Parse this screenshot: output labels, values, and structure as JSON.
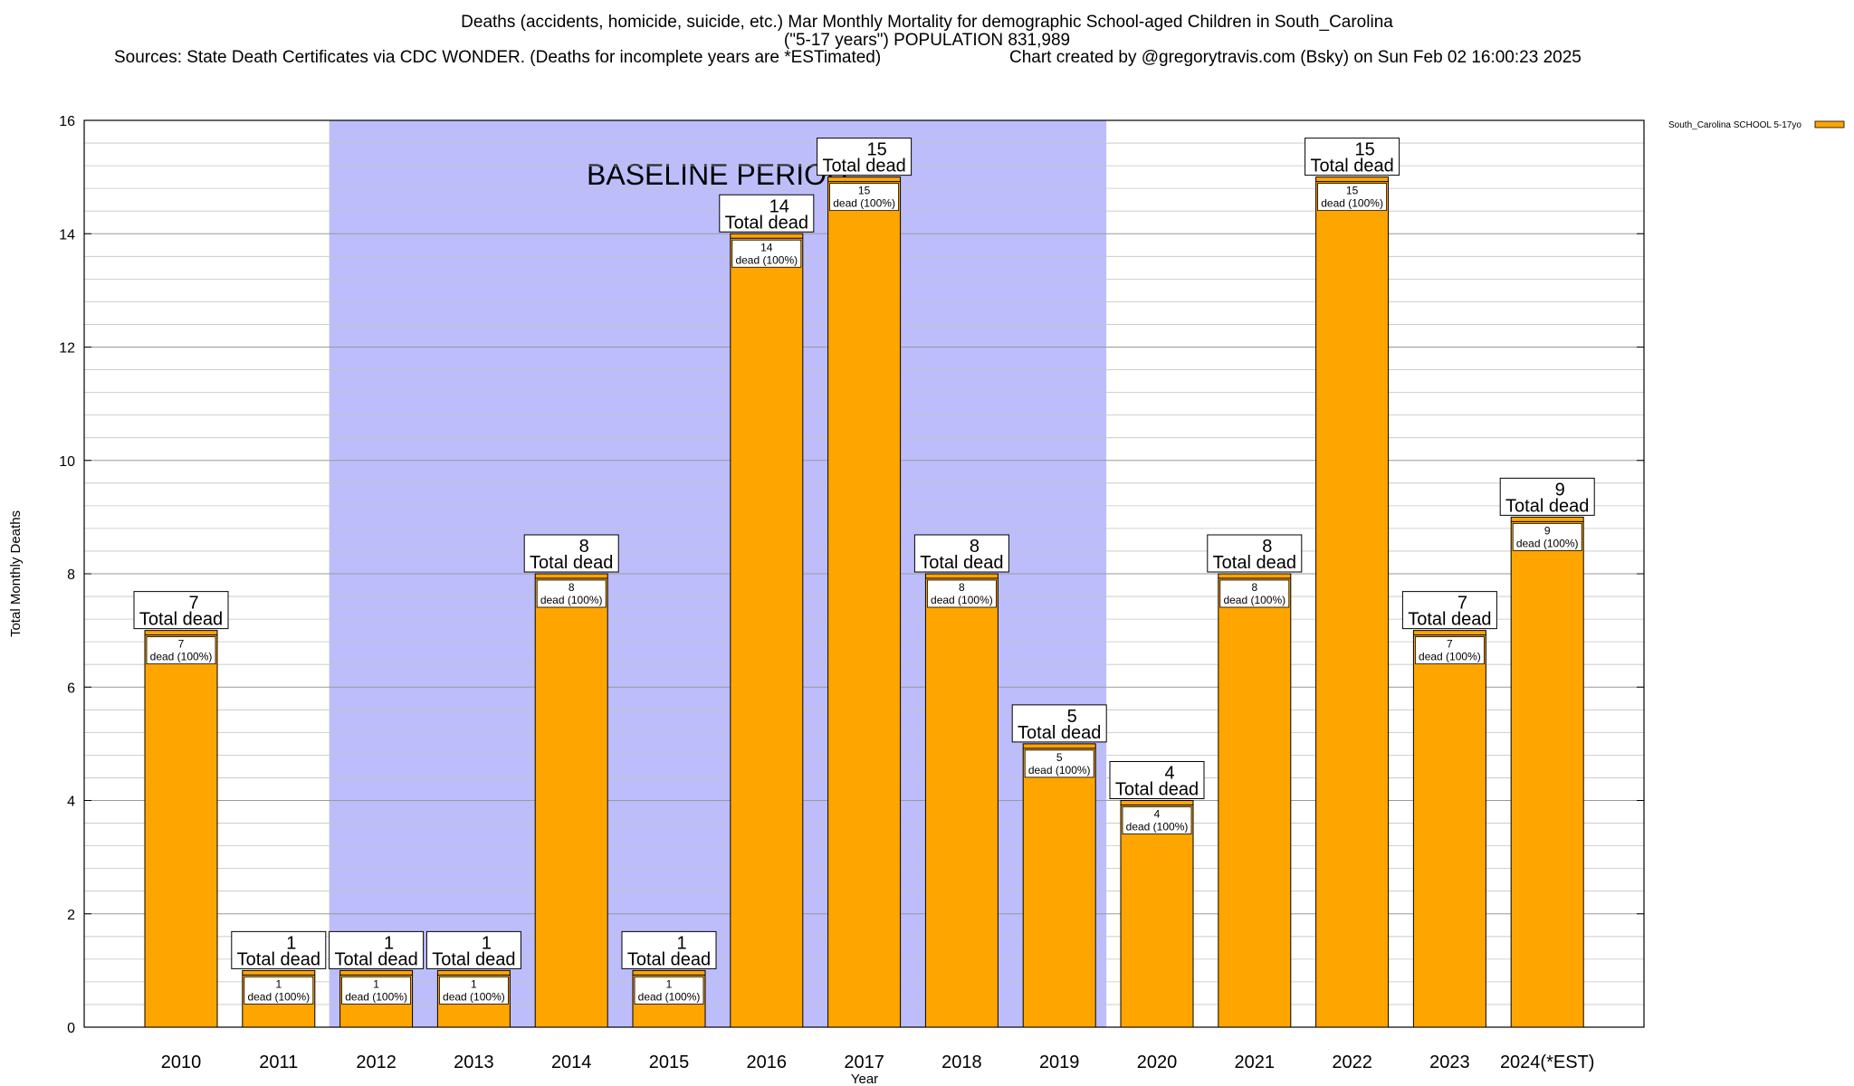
{
  "header": {
    "title_line1": "Deaths (accidents, homicide, suicide, etc.) Mar Monthly Mortality for demographic School-aged Children in South_Carolina",
    "title_line2": "(\"5-17 years\") POPULATION 831,989",
    "sources": "Sources: State Death Certificates via CDC WONDER. (Deaths for incomplete years are *ESTimated)",
    "credit": "Chart created by @gregorytravis.com (Bsky) on Sun Feb 02 16:00:23 2025"
  },
  "colors": {
    "bar": "#FFA500",
    "baseline": "#BDBDFB",
    "grid": "#A0A0A0"
  },
  "chart_data": {
    "type": "bar",
    "xlabel": "Year",
    "ylabel": "Total Monthly Deaths",
    "ylim": [
      0,
      16
    ],
    "yticks": [
      "0",
      "2",
      "4",
      "6",
      "8",
      "10",
      "12",
      "14",
      "16"
    ],
    "categories": [
      "2010",
      "2011",
      "2012",
      "2013",
      "2014",
      "2015",
      "2016",
      "2017",
      "2018",
      "2019",
      "2020",
      "2021",
      "2022",
      "2023",
      "2024(*EST)"
    ],
    "series": [
      {
        "name": "South_Carolina SCHOOL 5-17yo",
        "values": [
          7,
          1,
          1,
          1,
          8,
          1,
          14,
          15,
          8,
          5,
          4,
          8,
          15,
          7,
          9
        ]
      }
    ],
    "bar_label_total": "Total dead",
    "bar_label_inner": "dead (100%)",
    "baseline_period": {
      "label": "BASELINE PERIOD",
      "start": "2012",
      "end": "2019"
    },
    "legend_position": "top-right",
    "grid": true
  }
}
